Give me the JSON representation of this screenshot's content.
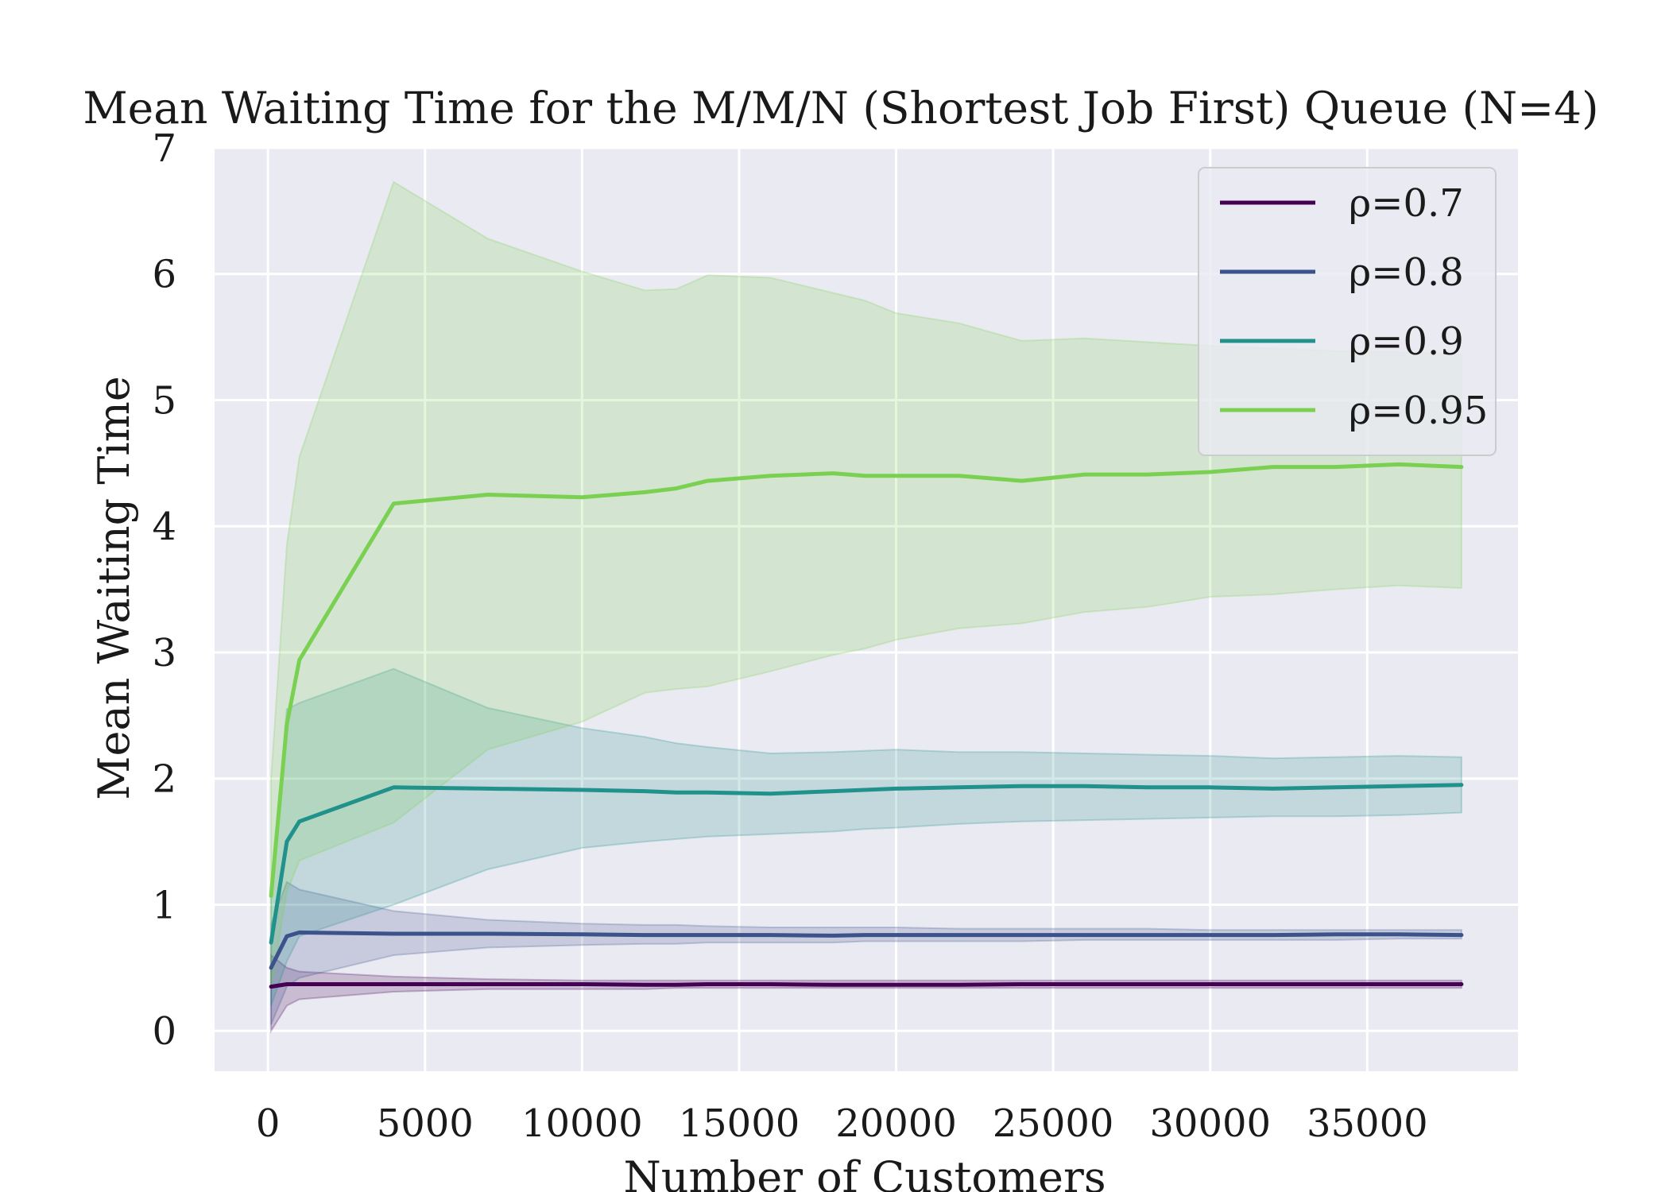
{
  "chart_data": {
    "type": "line",
    "title": "Mean Waiting Time for the M/M/N (Shortest Job First) Queue (N=4)",
    "xlabel": "Number of Customers",
    "ylabel": "Mean Waiting Time",
    "xlim": [
      -1700,
      39800
    ],
    "ylim": [
      -0.32,
      7.0
    ],
    "xticks": [
      0,
      5000,
      10000,
      15000,
      20000,
      25000,
      30000,
      35000
    ],
    "xtick_labels": [
      "0",
      "5000",
      "10000",
      "15000",
      "20000",
      "25000",
      "30000",
      "35000"
    ],
    "yticks": [
      0,
      1,
      2,
      3,
      4,
      5,
      6,
      7
    ],
    "ytick_labels": [
      "0",
      "1",
      "2",
      "3",
      "4",
      "5",
      "6",
      "7"
    ],
    "grid": true,
    "legend_position": "top-right",
    "x": [
      100,
      600,
      1000,
      4000,
      7000,
      10000,
      12000,
      13000,
      14000,
      16000,
      18000,
      19000,
      20000,
      22000,
      24000,
      26000,
      28000,
      30000,
      32000,
      34000,
      36000,
      38000
    ],
    "series": [
      {
        "name": "ρ=0.7",
        "color": "#440154",
        "values": [
          0.35,
          0.37,
          0.37,
          0.37,
          0.37,
          0.37,
          0.365,
          0.365,
          0.37,
          0.37,
          0.365,
          0.365,
          0.365,
          0.365,
          0.37,
          0.37,
          0.37,
          0.37,
          0.37,
          0.37,
          0.37,
          0.37
        ],
        "lower": [
          0.0,
          0.2,
          0.25,
          0.31,
          0.33,
          0.33,
          0.33,
          0.34,
          0.34,
          0.34,
          0.34,
          0.34,
          0.34,
          0.34,
          0.34,
          0.34,
          0.34,
          0.34,
          0.34,
          0.34,
          0.34,
          0.34
        ],
        "upper": [
          0.6,
          0.5,
          0.47,
          0.43,
          0.41,
          0.4,
          0.4,
          0.4,
          0.4,
          0.4,
          0.4,
          0.4,
          0.4,
          0.4,
          0.4,
          0.4,
          0.4,
          0.4,
          0.4,
          0.4,
          0.4,
          0.4
        ]
      },
      {
        "name": "ρ=0.8",
        "color": "#3b528b",
        "values": [
          0.5,
          0.75,
          0.78,
          0.77,
          0.77,
          0.765,
          0.76,
          0.76,
          0.76,
          0.76,
          0.755,
          0.76,
          0.76,
          0.76,
          0.76,
          0.76,
          0.76,
          0.76,
          0.76,
          0.765,
          0.765,
          0.76
        ],
        "lower": [
          0.05,
          0.35,
          0.42,
          0.6,
          0.66,
          0.68,
          0.69,
          0.69,
          0.7,
          0.7,
          0.7,
          0.71,
          0.71,
          0.71,
          0.71,
          0.72,
          0.72,
          0.72,
          0.72,
          0.72,
          0.73,
          0.73
        ],
        "upper": [
          0.85,
          1.18,
          1.12,
          0.95,
          0.88,
          0.85,
          0.84,
          0.84,
          0.83,
          0.82,
          0.82,
          0.82,
          0.82,
          0.81,
          0.81,
          0.81,
          0.81,
          0.8,
          0.8,
          0.8,
          0.8,
          0.8
        ]
      },
      {
        "name": "ρ=0.9",
        "color": "#21918c",
        "values": [
          0.7,
          1.5,
          1.66,
          1.93,
          1.92,
          1.91,
          1.9,
          1.89,
          1.89,
          1.88,
          1.9,
          1.91,
          1.92,
          1.93,
          1.94,
          1.94,
          1.93,
          1.93,
          1.92,
          1.93,
          1.94,
          1.95
        ],
        "lower": [
          0.2,
          0.55,
          0.75,
          1.0,
          1.28,
          1.45,
          1.5,
          1.52,
          1.54,
          1.56,
          1.58,
          1.6,
          1.61,
          1.64,
          1.66,
          1.67,
          1.68,
          1.69,
          1.7,
          1.7,
          1.71,
          1.73
        ],
        "upper": [
          1.1,
          2.55,
          2.6,
          2.87,
          2.56,
          2.4,
          2.33,
          2.28,
          2.25,
          2.2,
          2.21,
          2.22,
          2.23,
          2.21,
          2.21,
          2.2,
          2.19,
          2.18,
          2.16,
          2.17,
          2.18,
          2.17
        ]
      },
      {
        "name": "ρ=0.95",
        "color": "#7ad151",
        "values": [
          1.07,
          2.43,
          2.94,
          4.18,
          4.25,
          4.23,
          4.27,
          4.3,
          4.36,
          4.4,
          4.42,
          4.4,
          4.4,
          4.4,
          4.36,
          4.41,
          4.41,
          4.43,
          4.47,
          4.47,
          4.49,
          4.47
        ],
        "lower": [
          0.35,
          1.1,
          1.35,
          1.65,
          2.23,
          2.45,
          2.68,
          2.71,
          2.73,
          2.85,
          2.98,
          3.03,
          3.1,
          3.19,
          3.23,
          3.32,
          3.36,
          3.44,
          3.46,
          3.5,
          3.53,
          3.51
        ],
        "upper": [
          2.0,
          3.85,
          4.55,
          6.73,
          6.28,
          6.02,
          5.87,
          5.88,
          5.99,
          5.97,
          5.85,
          5.79,
          5.69,
          5.61,
          5.47,
          5.49,
          5.46,
          5.43,
          5.41,
          5.39,
          5.38,
          5.36
        ]
      }
    ]
  }
}
